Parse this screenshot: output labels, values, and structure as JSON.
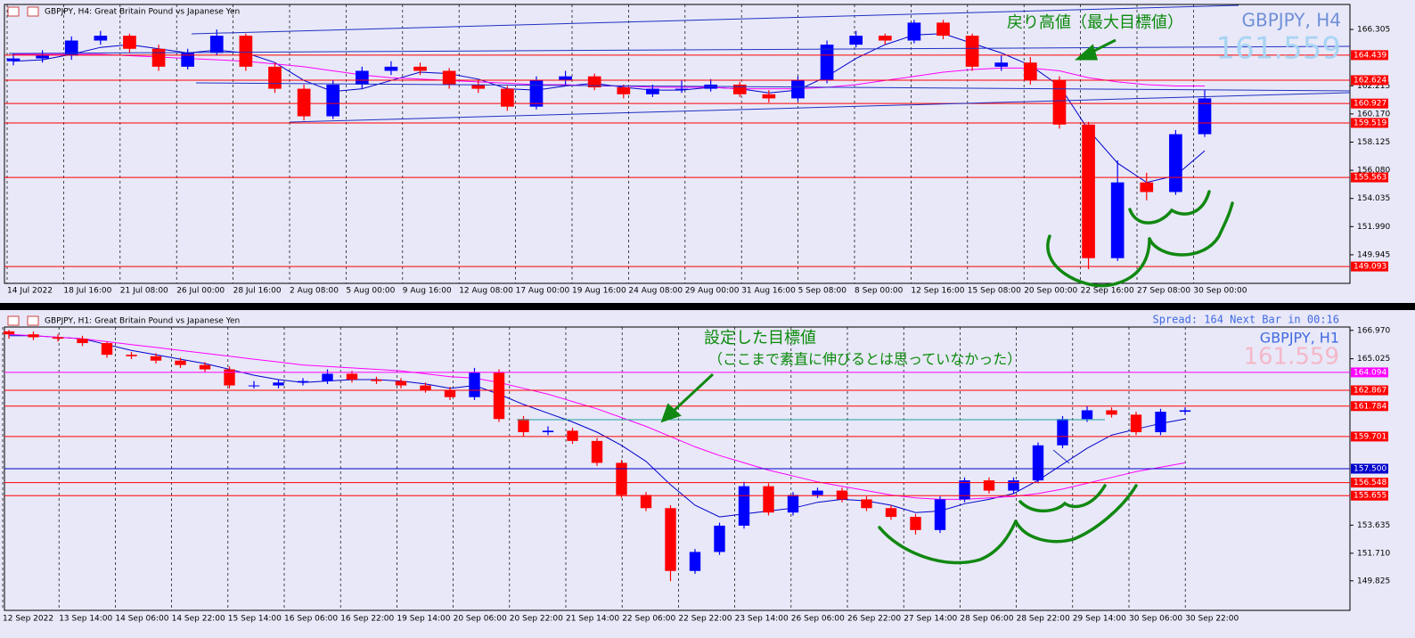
{
  "chart_data": [
    {
      "type": "candlestick",
      "header": "GBPJPY, H4:  Great Britain Pound vs Japanese Yen",
      "symbol_label": "GBPJPY, H4",
      "price_label": 161.559,
      "annotations": [
        "戻り高値（最大目標値）"
      ],
      "ylim": [
        147.87,
        168.12
      ],
      "yticks": [
        166.305,
        162.215,
        {
          "value": 160.17,
          "label": "160.170"
        },
        158.125,
        {
          "value": 156.08,
          "label": "156.080"
        },
        154.035,
        {
          "value": 151.99,
          "label": "151.990"
        },
        149.945
      ],
      "levels": [
        {
          "value": 164.439,
          "color": "#ff0000"
        },
        {
          "value": 162.624,
          "color": "#ff0000"
        },
        {
          "value": 160.927,
          "color": "#ff0000"
        },
        {
          "value": 159.519,
          "color": "#ff0000"
        },
        {
          "value": 155.563,
          "color": "#ff0000"
        },
        {
          "value": 149.093,
          "color": "#ff0000"
        }
      ],
      "xtick_labels": [
        "14 Jul 2022",
        "18 Jul 16:00",
        "21 Jul 08:00",
        "26 Jul 00:00",
        "28 Jul 16:00",
        "2 Aug 08:00",
        "5 Aug 00:00",
        "9 Aug 16:00",
        "12 Aug 08:00",
        "17 Aug 00:00",
        "19 Aug 16:00",
        "24 Aug 08:00",
        "29 Aug 00:00",
        "31 Aug 16:00",
        "5 Sep 08:00",
        "8 Sep 00:00",
        "12 Sep 16:00",
        "15 Sep 08:00",
        "20 Sep 00:00",
        "22 Sep 16:00",
        "27 Sep 08:00",
        "30 Sep 00:00"
      ],
      "up_color": "#0000ff",
      "down_color": "#ff0000",
      "candles": [
        [
          164.0,
          164.6,
          163.7,
          164.2
        ],
        [
          164.2,
          164.8,
          163.9,
          164.4
        ],
        [
          164.4,
          165.8,
          164.1,
          165.5
        ],
        [
          165.5,
          166.2,
          165.2,
          165.85
        ],
        [
          165.85,
          166.0,
          164.6,
          164.9
        ],
        [
          164.9,
          165.2,
          163.3,
          163.6
        ],
        [
          163.6,
          164.9,
          163.4,
          164.6
        ],
        [
          164.6,
          166.3,
          164.4,
          165.85
        ],
        [
          165.85,
          166.0,
          163.3,
          163.6
        ],
        [
          163.6,
          163.9,
          161.7,
          162.0
        ],
        [
          162.0,
          162.3,
          159.7,
          160.0
        ],
        [
          160.0,
          162.6,
          159.8,
          162.3
        ],
        [
          162.3,
          163.6,
          162.0,
          163.3
        ],
        [
          163.3,
          164.0,
          163.0,
          163.6
        ],
        [
          163.6,
          163.9,
          163.0,
          163.3
        ],
        [
          163.3,
          163.5,
          162.0,
          162.3
        ],
        [
          162.3,
          162.6,
          161.7,
          162.0
        ],
        [
          162.0,
          162.2,
          160.4,
          160.7
        ],
        [
          160.7,
          162.9,
          160.5,
          162.6
        ],
        [
          162.6,
          163.3,
          162.3,
          162.9
        ],
        [
          162.9,
          163.1,
          161.9,
          162.1
        ],
        [
          162.1,
          162.3,
          161.3,
          161.6
        ],
        [
          161.6,
          162.3,
          161.4,
          162.0
        ],
        [
          162.0,
          162.6,
          161.7,
          162.0
        ],
        [
          162.0,
          162.7,
          161.8,
          162.3
        ],
        [
          162.3,
          162.5,
          161.4,
          161.6
        ],
        [
          161.6,
          161.9,
          161.0,
          161.3
        ],
        [
          161.3,
          162.9,
          161.1,
          162.6
        ],
        [
          162.6,
          165.5,
          162.4,
          165.2
        ],
        [
          165.2,
          166.2,
          165.0,
          165.85
        ],
        [
          165.85,
          166.0,
          165.2,
          165.5
        ],
        [
          165.5,
          167.0,
          165.3,
          166.8
        ],
        [
          166.8,
          167.0,
          165.6,
          165.85
        ],
        [
          165.85,
          166.0,
          163.3,
          163.6
        ],
        [
          163.6,
          164.4,
          163.3,
          163.9
        ],
        [
          163.9,
          164.3,
          162.3,
          162.6
        ],
        [
          162.6,
          162.9,
          159.1,
          159.4
        ],
        [
          159.4,
          159.6,
          148.9,
          149.7
        ],
        [
          149.7,
          156.8,
          149.5,
          155.2
        ],
        [
          155.2,
          155.9,
          153.9,
          154.5
        ],
        [
          154.5,
          159.0,
          154.3,
          158.7
        ],
        [
          158.7,
          161.9,
          158.5,
          161.3
        ]
      ],
      "ma_lines": [
        {
          "color": "#0000cc",
          "values": [
            164.0,
            164.1,
            164.5,
            165.0,
            165.2,
            164.9,
            164.6,
            164.8,
            164.6,
            163.9,
            162.6,
            161.8,
            162.0,
            162.6,
            163.2,
            163.1,
            162.7,
            162.0,
            161.9,
            162.2,
            162.4,
            162.1,
            161.9,
            161.9,
            162.1,
            162.0,
            161.7,
            161.9,
            162.9,
            164.2,
            165.2,
            165.9,
            166.0,
            165.3,
            164.6,
            163.7,
            162.2,
            159.0,
            156.6,
            155.2,
            155.7,
            157.5
          ]
        },
        {
          "color": "#ff00ff",
          "values": [
            164.5,
            164.5,
            164.5,
            164.5,
            164.4,
            164.3,
            164.2,
            164.1,
            164.0,
            163.8,
            163.6,
            163.3,
            163.0,
            162.8,
            162.7,
            162.6,
            162.5,
            162.4,
            162.3,
            162.3,
            162.2,
            162.2,
            162.1,
            162.1,
            162.1,
            162.0,
            162.0,
            162.0,
            162.1,
            162.3,
            162.6,
            162.9,
            163.2,
            163.4,
            163.5,
            163.5,
            163.3,
            162.8,
            162.5,
            162.3,
            162.2,
            162.2
          ]
        }
      ]
    },
    {
      "type": "candlestick",
      "header": "GBPJPY, H1:  Great Britain Pound vs Japanese Yen",
      "symbol_label": "GBPJPY, H1",
      "price_label": 161.559,
      "status": "Spread: 164 Next Bar in 00:16",
      "annotations": [
        "設定した目標値",
        "（ここまで素直に伸びるとは思っていなかった）"
      ],
      "ylim": [
        147.8,
        167.2
      ],
      "yticks": [
        {
          "value": 166.97,
          "label": "166.970"
        },
        165.025,
        153.635,
        {
          "value": 151.71,
          "label": "151.710"
        },
        149.825
      ],
      "levels": [
        {
          "value": 164.094,
          "color": "#ff00ff"
        },
        {
          "value": 162.867,
          "color": "#ff0000"
        },
        {
          "value": 161.784,
          "color": "#ff0000"
        },
        {
          "value": 159.701,
          "color": "#ff0000"
        },
        {
          "value": 157.5,
          "label": "157.500",
          "color": "#0000cc"
        },
        {
          "value": 156.548,
          "color": "#ff0000"
        },
        {
          "value": 155.655,
          "color": "#ff0000"
        }
      ],
      "xtick_labels": [
        "12 Sep 2022",
        "13 Sep 14:00",
        "14 Sep 06:00",
        "14 Sep 22:00",
        "15 Sep 14:00",
        "16 Sep 06:00",
        "16 Sep 22:00",
        "19 Sep 14:00",
        "20 Sep 06:00",
        "20 Sep 22:00",
        "21 Sep 14:00",
        "22 Sep 06:00",
        "22 Sep 22:00",
        "23 Sep 14:00",
        "26 Sep 06:00",
        "26 Sep 22:00",
        "27 Sep 14:00",
        "28 Sep 06:00",
        "28 Sep 22:00",
        "29 Sep 14:00",
        "30 Sep 06:00",
        "30 Sep 22:00"
      ],
      "up_color": "#0000ff",
      "down_color": "#ff0000",
      "candles": [
        [
          166.9,
          167.0,
          166.4,
          166.7
        ],
        [
          166.7,
          166.9,
          166.3,
          166.5
        ],
        [
          166.5,
          166.7,
          166.2,
          166.4
        ],
        [
          166.4,
          166.6,
          165.9,
          166.1
        ],
        [
          166.1,
          166.2,
          165.1,
          165.3
        ],
        [
          165.3,
          165.5,
          165.0,
          165.2
        ],
        [
          165.2,
          165.4,
          164.7,
          164.9
        ],
        [
          164.9,
          165.1,
          164.4,
          164.6
        ],
        [
          164.6,
          164.8,
          164.1,
          164.3
        ],
        [
          164.3,
          164.5,
          163.0,
          163.2
        ],
        [
          163.2,
          163.5,
          163.0,
          163.2
        ],
        [
          163.2,
          163.6,
          163.0,
          163.4
        ],
        [
          163.4,
          163.7,
          163.2,
          163.5
        ],
        [
          163.5,
          164.3,
          163.3,
          164.0
        ],
        [
          164.0,
          164.2,
          163.4,
          163.6
        ],
        [
          163.6,
          163.8,
          163.3,
          163.5
        ],
        [
          163.5,
          163.7,
          163.0,
          163.2
        ],
        [
          163.2,
          163.4,
          162.7,
          162.9
        ],
        [
          162.9,
          163.1,
          162.2,
          162.4
        ],
        [
          162.4,
          164.4,
          162.2,
          164.1
        ],
        [
          164.1,
          164.3,
          160.7,
          160.9
        ],
        [
          160.9,
          161.1,
          159.7,
          160.0
        ],
        [
          160.0,
          160.4,
          159.8,
          160.1
        ],
        [
          160.1,
          160.3,
          159.2,
          159.4
        ],
        [
          159.4,
          159.6,
          157.7,
          157.9
        ],
        [
          157.9,
          158.1,
          155.5,
          155.7
        ],
        [
          155.7,
          155.9,
          154.6,
          154.8
        ],
        [
          154.8,
          155.0,
          149.8,
          150.5
        ],
        [
          150.5,
          152.0,
          150.3,
          151.8
        ],
        [
          151.8,
          153.8,
          151.6,
          153.6
        ],
        [
          153.6,
          156.6,
          153.4,
          156.3
        ],
        [
          156.3,
          156.5,
          154.3,
          154.5
        ],
        [
          154.5,
          155.9,
          154.3,
          155.7
        ],
        [
          155.7,
          156.2,
          155.5,
          156.0
        ],
        [
          156.0,
          156.2,
          155.2,
          155.4
        ],
        [
          155.4,
          155.6,
          154.6,
          154.8
        ],
        [
          154.8,
          155.0,
          154.0,
          154.2
        ],
        [
          154.2,
          154.4,
          153.0,
          153.3
        ],
        [
          153.3,
          155.6,
          153.1,
          155.4
        ],
        [
          155.4,
          156.9,
          155.2,
          156.7
        ],
        [
          156.7,
          156.9,
          155.8,
          156.0
        ],
        [
          156.0,
          156.9,
          155.8,
          156.7
        ],
        [
          156.7,
          159.3,
          156.5,
          159.1
        ],
        [
          159.1,
          161.1,
          158.9,
          160.9
        ],
        [
          160.9,
          161.8,
          160.7,
          161.5
        ],
        [
          161.5,
          161.7,
          161.0,
          161.2
        ],
        [
          161.2,
          161.4,
          159.8,
          160.0
        ],
        [
          160.0,
          161.6,
          159.8,
          161.4
        ],
        [
          161.4,
          161.7,
          161.2,
          161.5
        ]
      ],
      "ma_lines": [
        {
          "color": "#0000cc",
          "values": [
            166.6,
            166.6,
            166.5,
            166.4,
            166.0,
            165.6,
            165.3,
            165.0,
            164.7,
            164.3,
            163.9,
            163.6,
            163.4,
            163.5,
            163.6,
            163.6,
            163.5,
            163.3,
            163.0,
            163.2,
            162.6,
            161.9,
            161.3,
            160.7,
            160.0,
            159.1,
            158.0,
            156.4,
            155.0,
            154.2,
            154.4,
            154.6,
            154.8,
            155.2,
            155.4,
            155.3,
            155.0,
            154.5,
            154.6,
            155.1,
            155.4,
            155.8,
            156.7,
            157.8,
            158.9,
            159.8,
            160.2,
            160.6,
            160.9
          ]
        },
        {
          "color": "#ff00ff",
          "values": [
            166.7,
            166.6,
            166.5,
            166.4,
            166.2,
            166.0,
            165.8,
            165.6,
            165.4,
            165.2,
            165.0,
            164.8,
            164.6,
            164.5,
            164.4,
            164.3,
            164.2,
            164.0,
            163.8,
            163.7,
            163.4,
            163.0,
            162.6,
            162.1,
            161.6,
            161.0,
            160.4,
            159.7,
            159.0,
            158.4,
            157.9,
            157.4,
            157.0,
            156.6,
            156.3,
            156.0,
            155.7,
            155.5,
            155.4,
            155.4,
            155.5,
            155.6,
            155.8,
            156.1,
            156.5,
            156.9,
            157.3,
            157.6,
            157.9
          ]
        }
      ]
    }
  ]
}
